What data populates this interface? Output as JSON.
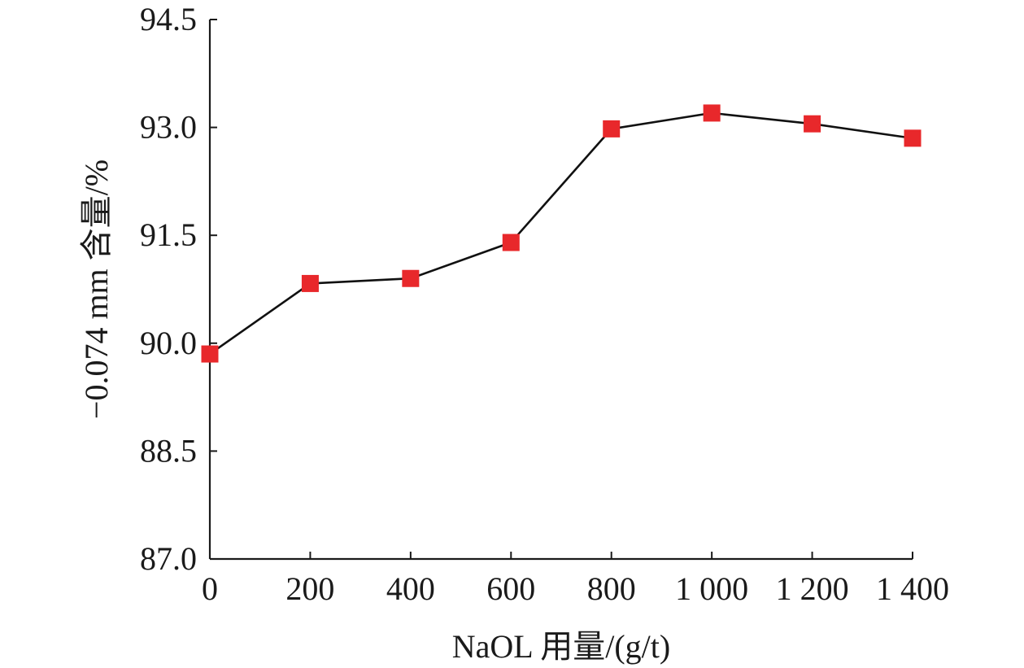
{
  "chart_data": {
    "type": "line",
    "title": "",
    "xlabel": "NaOL 用量/(g/t)",
    "ylabel": "−0.074 mm 含量/%",
    "x": [
      0,
      200,
      400,
      600,
      800,
      1000,
      1200,
      1400
    ],
    "x_tick_labels": [
      "0",
      "200",
      "400",
      "600",
      "800",
      "1 000",
      "1 200",
      "1 400"
    ],
    "y_ticks": [
      87.0,
      88.5,
      90.0,
      91.5,
      93.0,
      94.5
    ],
    "y_tick_labels": [
      "87.0",
      "88.5",
      "90.0",
      "91.5",
      "93.0",
      "94.5"
    ],
    "xlim": [
      0,
      1400
    ],
    "ylim": [
      87.0,
      94.5
    ],
    "grid": false,
    "series": [
      {
        "values": [
          89.85,
          90.83,
          90.9,
          91.4,
          92.98,
          93.2,
          93.05,
          92.85
        ],
        "line_color": "#111111",
        "marker": "square",
        "marker_color": "#e8282b"
      }
    ]
  }
}
